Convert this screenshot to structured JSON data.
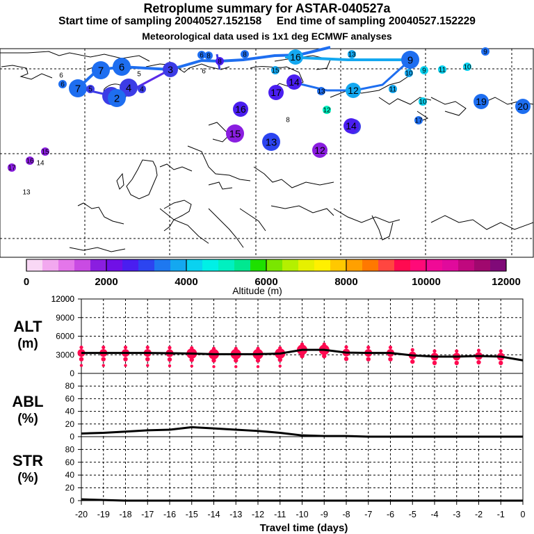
{
  "header": {
    "title": "Retroplume summary for ASTAR-040527a",
    "start_label": "Start time of sampling 20040527.152158",
    "end_label": "End time of sampling 20040527.152229",
    "meteo": "Meteorological data used is 1x1 deg ECMWF analyses"
  },
  "colorbar": {
    "label": "Altitude (m)",
    "ticks": [
      "0",
      "2000",
      "4000",
      "6000",
      "8000",
      "10000",
      "12000"
    ],
    "colors": [
      "#f9d8f5",
      "#f2a8ef",
      "#e476ea",
      "#c94be3",
      "#8a1ee0",
      "#7010e6",
      "#4a1ef0",
      "#2c44f0",
      "#1e78f0",
      "#14a8f0",
      "#0ad2f0",
      "#00f0e6",
      "#00f0c0",
      "#00e890",
      "#1ee000",
      "#7ae600",
      "#b4f000",
      "#e6f000",
      "#fff000",
      "#ffc800",
      "#ffa000",
      "#ff7800",
      "#ff4640",
      "#ff0a50",
      "#ff0a78",
      "#f00a96",
      "#e00a9c",
      "#c0087e",
      "#a0086e",
      "#800a78"
    ]
  },
  "map": {
    "points": [
      {
        "n": "7",
        "c": "#1e6ef0",
        "s": "l"
      },
      {
        "n": "7",
        "c": "#1e6ef0",
        "s": "l"
      },
      {
        "n": "6",
        "c": "#1e6ef0",
        "s": "l"
      },
      {
        "n": "5",
        "c": "#3c3ce6",
        "s": "l"
      },
      {
        "n": "4",
        "c": "#3c3ce6",
        "s": "l"
      },
      {
        "n": "3",
        "c": "#3c3ce6",
        "s": "m"
      },
      {
        "n": "2",
        "c": "#1e6ef0",
        "s": "l"
      },
      {
        "n": "8",
        "c": "#1e6ef0",
        "s": "s"
      },
      {
        "n": "16",
        "c": "#14a8f0",
        "s": "m"
      },
      {
        "n": "15",
        "c": "#14a8f0",
        "s": "s"
      },
      {
        "n": "9",
        "c": "#1e6ef0",
        "s": "l"
      },
      {
        "n": "10",
        "c": "#14a8f0",
        "s": "s"
      },
      {
        "n": "9",
        "c": "#0ad2f0",
        "s": "s"
      },
      {
        "n": "11",
        "c": "#0ad2f0",
        "s": "s"
      },
      {
        "n": "10",
        "c": "#0ad2f0",
        "s": "s"
      },
      {
        "n": "9",
        "c": "#1e6ef0",
        "s": "s"
      },
      {
        "n": "13",
        "c": "#14a8f0",
        "s": "s"
      },
      {
        "n": "14",
        "c": "#4a1ef0",
        "s": "m"
      },
      {
        "n": "17",
        "c": "#4a1ef0",
        "s": "m"
      },
      {
        "n": "13",
        "c": "#1e6ef0",
        "s": "s"
      },
      {
        "n": "12",
        "c": "#14a8f0",
        "s": "m"
      },
      {
        "n": "11",
        "c": "#14a8f0",
        "s": "s"
      },
      {
        "n": "10",
        "c": "#0ad2f0",
        "s": "s"
      },
      {
        "n": "19",
        "c": "#1e6ef0",
        "s": "m"
      },
      {
        "n": "20",
        "c": "#1e6ef0",
        "s": "m"
      },
      {
        "n": "16",
        "c": "#4a1ef0",
        "s": "m"
      },
      {
        "n": "12",
        "c": "#00f0c0",
        "s": "s"
      },
      {
        "n": "15",
        "c": "#8a1ee0",
        "s": "l"
      },
      {
        "n": "13",
        "c": "#2c44f0",
        "s": "l"
      },
      {
        "n": "14",
        "c": "#3c3ce6",
        "s": "m"
      },
      {
        "n": "12",
        "c": "#8a1ee0",
        "s": "m"
      },
      {
        "n": "17",
        "c": "#1e6ef0",
        "s": "s"
      },
      {
        "n": "8",
        "c": "#000000",
        "s": "t"
      },
      {
        "n": "6",
        "c": "#1e6ef0",
        "s": "s"
      },
      {
        "n": "6",
        "c": "#000000",
        "s": "t"
      },
      {
        "n": "6",
        "c": "#000000",
        "s": "t"
      },
      {
        "n": "5",
        "c": "#000000",
        "s": "t"
      },
      {
        "n": "6",
        "c": "#1e6ef0",
        "s": "s"
      },
      {
        "n": "8",
        "c": "#1e6ef0",
        "s": "s"
      },
      {
        "n": "8",
        "c": "#4a1ef0",
        "s": "s"
      },
      {
        "n": "17",
        "c": "#8a1ee0",
        "s": "s"
      },
      {
        "n": "16",
        "c": "#8a1ee0",
        "s": "s"
      },
      {
        "n": "15",
        "c": "#8a1ee0",
        "s": "s"
      },
      {
        "n": "14",
        "c": "#000000",
        "s": "t"
      },
      {
        "n": "13",
        "c": "#000000",
        "s": "t"
      },
      {
        "n": "4",
        "c": "#3c3ce6",
        "s": "s"
      },
      {
        "n": "5",
        "c": "#3c3ce6",
        "s": "s"
      },
      {
        "n": "14",
        "c": "#4a1ef0",
        "s": "m"
      },
      {
        "n": "13",
        "c": "#000000",
        "s": "t"
      }
    ]
  },
  "chart_data": [
    {
      "type": "line",
      "name": "ALT",
      "title": "ALT",
      "ylabel": "(m)",
      "ylim": [
        0,
        12000
      ],
      "yticks": [
        0,
        3000,
        6000,
        9000,
        12000
      ],
      "x": [
        -20,
        -19,
        -18,
        -17,
        -16,
        -15,
        -14,
        -13,
        -12,
        -11,
        -10,
        -9,
        -8,
        -7,
        -6,
        -5,
        -4,
        -3,
        -2,
        -1,
        0
      ],
      "values": [
        3300,
        3300,
        3300,
        3300,
        3250,
        3200,
        3100,
        3100,
        3100,
        3200,
        3800,
        3800,
        3350,
        3300,
        3300,
        2900,
        2700,
        2700,
        2800,
        2700,
        2100
      ],
      "dot_color": "#ff0a50"
    },
    {
      "type": "line",
      "name": "ABL",
      "title": "ABL",
      "ylabel": "(%)",
      "ylim": [
        0,
        100
      ],
      "yticks": [
        0,
        20,
        40,
        60,
        80
      ],
      "x": [
        -20,
        -19,
        -18,
        -17,
        -16,
        -15,
        -14,
        -13,
        -12,
        -11,
        -10,
        -9,
        -8,
        -7,
        -6,
        -5,
        -4,
        -3,
        -2,
        -1,
        0
      ],
      "values": [
        5,
        6,
        8,
        10,
        11,
        15,
        13,
        11,
        9,
        6,
        2,
        1,
        1,
        0,
        0,
        0,
        0,
        0,
        0,
        0,
        0
      ]
    },
    {
      "type": "line",
      "name": "STR",
      "title": "STR",
      "ylabel": "(%)",
      "ylim": [
        0,
        100
      ],
      "yticks": [
        0,
        20,
        40,
        60,
        80
      ],
      "x": [
        -20,
        -19,
        -18,
        -17,
        -16,
        -15,
        -14,
        -13,
        -12,
        -11,
        -10,
        -9,
        -8,
        -7,
        -6,
        -5,
        -4,
        -3,
        -2,
        -1,
        0
      ],
      "values": [
        2,
        1,
        0,
        0,
        0,
        0,
        0,
        0,
        0,
        0,
        0,
        0,
        0,
        0,
        0,
        0,
        0,
        0,
        0,
        0,
        0
      ]
    }
  ],
  "xaxis": {
    "label": "Travel time (days)",
    "ticks": [
      "-20",
      "-19",
      "-18",
      "-17",
      "-16",
      "-15",
      "-14",
      "-13",
      "-12",
      "-11",
      "-10",
      "-9",
      "-8",
      "-7",
      "-6",
      "-5",
      "-4",
      "-3",
      "-2",
      "-1",
      "0"
    ]
  }
}
